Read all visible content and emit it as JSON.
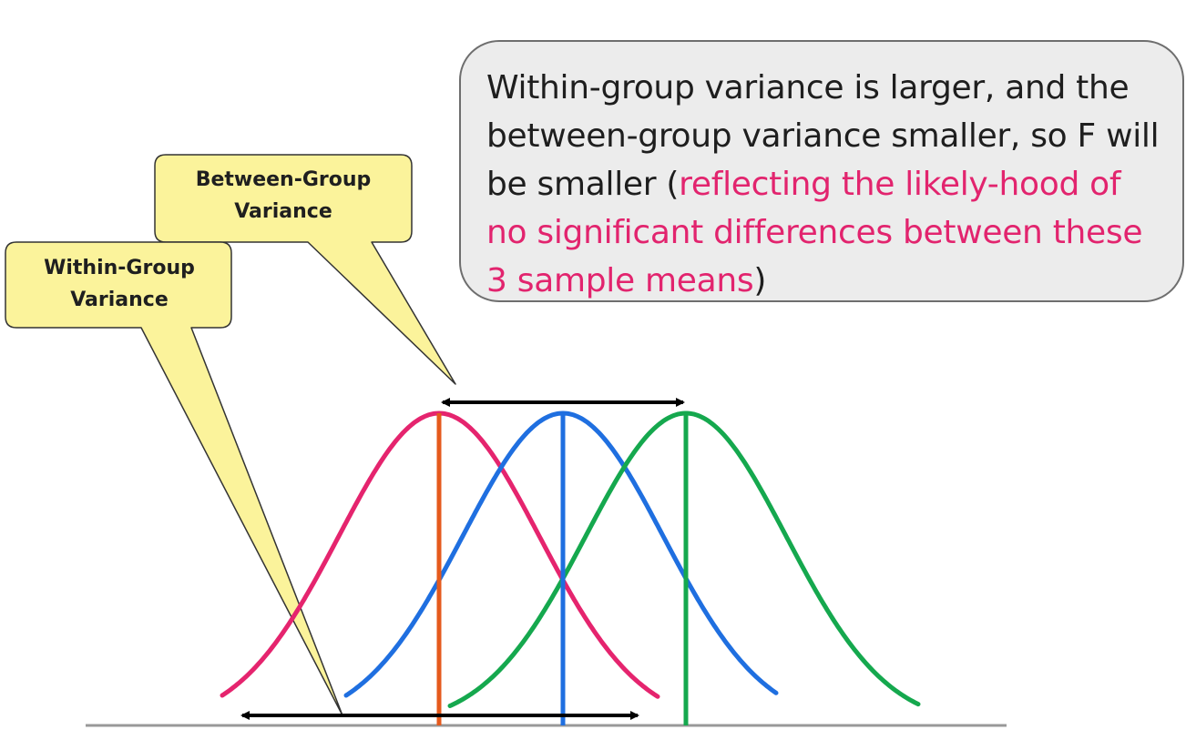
{
  "callouts": {
    "between_group": {
      "line1": "Between-Group",
      "line2": "Variance"
    },
    "within_group": {
      "line1": "Within-Group",
      "line2": "Variance"
    }
  },
  "info_box": {
    "line1": "Within-group variance is larger, and the",
    "line2": "between-group variance smaller, so F will",
    "line3_prefix": "be smaller (",
    "line3_highlight": "reflecting the likely-hood of",
    "line4_highlight": "no significant differences between these",
    "line5_highlight": "3 sample means",
    "line5_suffix": ")"
  },
  "colors": {
    "curve_1": "#e5246e",
    "curve_2": "#1f6fe0",
    "curve_3": "#15a84e",
    "mean_line_1": "#e55a1c",
    "highlight_text": "#e2246e",
    "callout_fill": "#fbf39b",
    "info_box_fill": "#ececec"
  }
}
